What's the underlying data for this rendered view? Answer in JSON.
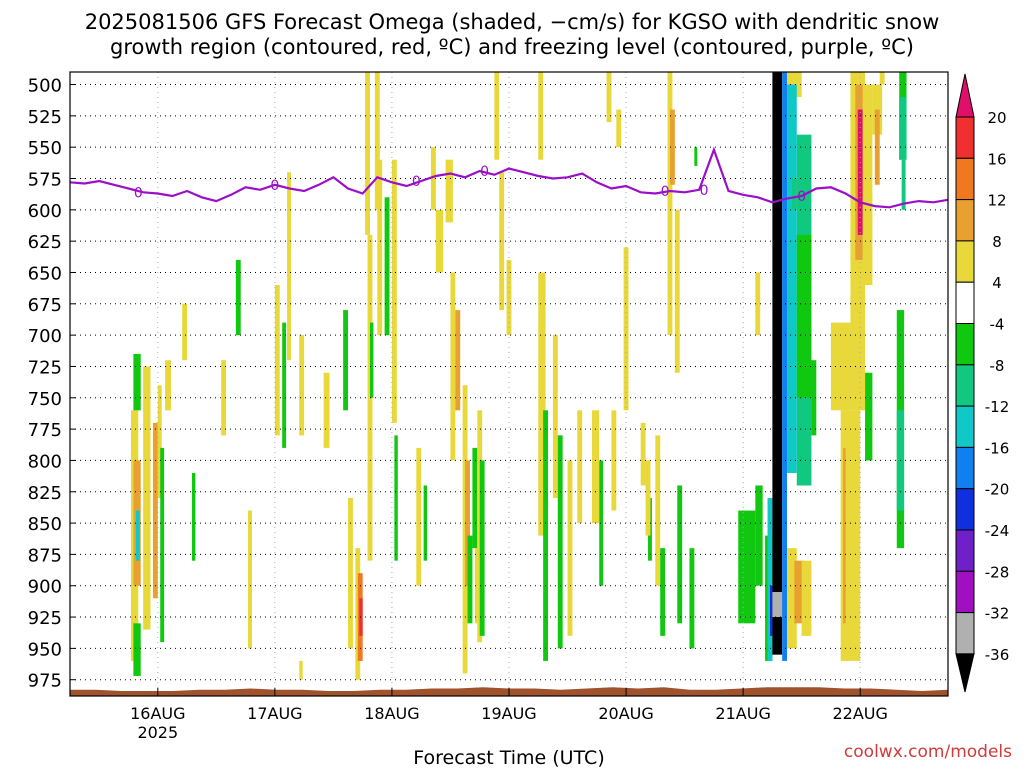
{
  "title": "2025081506 GFS Forecast Omega (shaded, −cm/s) for KGSO with dendritic snow\ngrowth region (contoured, red, ºC) and freezing level (contoured, purple, ºC)",
  "watermark": "coolwx.com/models",
  "chart_data": {
    "type": "heatmap",
    "title": "2025081506 GFS Forecast Omega (shaded, −cm/s) for KGSO with dendritic snow growth region (contoured, red, ºC) and freezing level (contoured, purple, ºC)",
    "xlabel": "Forecast Time (UTC)",
    "ylabel": "",
    "x_tick_labels": [
      "16AUG",
      "17AUG",
      "18AUG",
      "19AUG",
      "20AUG",
      "21AUG",
      "22AUG"
    ],
    "x_year_label": "2025",
    "x_range_hours": [
      0,
      180
    ],
    "y_ticks": [
      500,
      525,
      550,
      575,
      600,
      625,
      650,
      675,
      700,
      725,
      750,
      775,
      800,
      825,
      850,
      875,
      900,
      925,
      950,
      975
    ],
    "y_range": [
      490,
      988
    ],
    "grid": "dotted",
    "colorbar": {
      "ticks": [
        20,
        16,
        12,
        8,
        4,
        -4,
        -8,
        -12,
        -16,
        -20,
        -24,
        -28,
        -32,
        -36
      ],
      "bins": [
        {
          "lo": 20,
          "hi": 24,
          "color": "#e0106a"
        },
        {
          "lo": 16,
          "hi": 20,
          "color": "#f03030"
        },
        {
          "lo": 12,
          "hi": 16,
          "color": "#f07820"
        },
        {
          "lo": 8,
          "hi": 12,
          "color": "#e8a030"
        },
        {
          "lo": 4,
          "hi": 8,
          "color": "#e8d83a"
        },
        {
          "lo": -4,
          "hi": 4,
          "color": "#ffffff"
        },
        {
          "lo": -8,
          "hi": -4,
          "color": "#10c810"
        },
        {
          "lo": -12,
          "hi": -8,
          "color": "#10c880"
        },
        {
          "lo": -16,
          "hi": -12,
          "color": "#10c8c8"
        },
        {
          "lo": -20,
          "hi": -16,
          "color": "#1080f0"
        },
        {
          "lo": -24,
          "hi": -20,
          "color": "#1030e0"
        },
        {
          "lo": -28,
          "hi": -24,
          "color": "#7020c8"
        },
        {
          "lo": -32,
          "hi": -28,
          "color": "#a010c0"
        },
        {
          "lo": -36,
          "hi": -32,
          "color": "#b0b0b0"
        },
        {
          "lo": -40,
          "hi": -36,
          "color": "#000000"
        }
      ]
    },
    "freezing_level": {
      "label": "0",
      "color": "#9a10c8",
      "hours": [
        0,
        3,
        6,
        9,
        12,
        15,
        18,
        21,
        24,
        27,
        30,
        33,
        36,
        39,
        42,
        45,
        48,
        51,
        54,
        57,
        60,
        63,
        66,
        69,
        72,
        75,
        78,
        81,
        84,
        87,
        90,
        93,
        96,
        99,
        102,
        105,
        108,
        111,
        114,
        117,
        120,
        123,
        126,
        129,
        132,
        135,
        138,
        141,
        144,
        147,
        150,
        153,
        156,
        159,
        162,
        165,
        168,
        171,
        174,
        177,
        180
      ],
      "pressure": [
        578,
        579,
        577,
        580,
        583,
        586,
        587,
        589,
        585,
        590,
        593,
        588,
        582,
        584,
        580,
        583,
        585,
        580,
        574,
        583,
        587,
        574,
        578,
        581,
        577,
        573,
        571,
        574,
        569,
        572,
        567,
        570,
        573,
        575,
        574,
        571,
        578,
        583,
        581,
        586,
        587,
        585,
        586,
        584,
        552,
        585,
        588,
        590,
        594,
        591,
        589,
        583,
        582,
        587,
        594,
        597,
        598,
        595,
        593,
        594,
        592
      ]
    },
    "omega_cells": [
      {
        "t0": 12.5,
        "t1": 14.0,
        "p0": 760,
        "p1": 960,
        "value": 5
      },
      {
        "t0": 13.0,
        "t1": 14.5,
        "p0": 800,
        "p1": 900,
        "value": 10
      },
      {
        "t0": 13.5,
        "t1": 14.3,
        "p0": 840,
        "p1": 880,
        "value": -14
      },
      {
        "t0": 13.0,
        "t1": 14.5,
        "p0": 715,
        "p1": 760,
        "value": -6
      },
      {
        "t0": 13.0,
        "t1": 14.5,
        "p0": 930,
        "p1": 972,
        "value": -6
      },
      {
        "t0": 15.0,
        "t1": 16.5,
        "p0": 725,
        "p1": 935,
        "value": 5
      },
      {
        "t0": 17.0,
        "t1": 18.0,
        "p0": 770,
        "p1": 910,
        "value": 10
      },
      {
        "t0": 18.0,
        "t1": 18.8,
        "p0": 740,
        "p1": 830,
        "value": 6
      },
      {
        "t0": 18.5,
        "t1": 19.3,
        "p0": 790,
        "p1": 945,
        "value": -6
      },
      {
        "t0": 19.5,
        "t1": 20.7,
        "p0": 720,
        "p1": 760,
        "value": 5
      },
      {
        "t0": 23.0,
        "t1": 24.0,
        "p0": 675,
        "p1": 720,
        "value": 5
      },
      {
        "t0": 25.0,
        "t1": 25.7,
        "p0": 810,
        "p1": 880,
        "value": -6
      },
      {
        "t0": 31.0,
        "t1": 32.0,
        "p0": 720,
        "p1": 780,
        "value": 5
      },
      {
        "t0": 34.0,
        "t1": 35.0,
        "p0": 640,
        "p1": 700,
        "value": -6
      },
      {
        "t0": 36.5,
        "t1": 37.3,
        "p0": 840,
        "p1": 950,
        "value": 5
      },
      {
        "t0": 42.0,
        "t1": 43.0,
        "p0": 660,
        "p1": 780,
        "value": 5
      },
      {
        "t0": 43.5,
        "t1": 44.3,
        "p0": 690,
        "p1": 790,
        "value": -6
      },
      {
        "t0": 44.5,
        "t1": 45.3,
        "p0": 570,
        "p1": 720,
        "value": 5
      },
      {
        "t0": 47.0,
        "t1": 48.0,
        "p0": 700,
        "p1": 780,
        "value": 5
      },
      {
        "t0": 47.0,
        "t1": 47.7,
        "p0": 960,
        "p1": 975,
        "value": 5
      },
      {
        "t0": 52.0,
        "t1": 53.2,
        "p0": 730,
        "p1": 790,
        "value": 5
      },
      {
        "t0": 56.0,
        "t1": 57.0,
        "p0": 680,
        "p1": 760,
        "value": -6
      },
      {
        "t0": 57.0,
        "t1": 58.0,
        "p0": 830,
        "p1": 950,
        "value": 5
      },
      {
        "t0": 58.5,
        "t1": 59.5,
        "p0": 870,
        "p1": 975,
        "value": 5
      },
      {
        "t0": 59.0,
        "t1": 60.0,
        "p0": 890,
        "p1": 960,
        "value": 12
      },
      {
        "t0": 59.3,
        "t1": 60.0,
        "p0": 910,
        "p1": 940,
        "value": 18
      },
      {
        "t0": 60.5,
        "t1": 61.5,
        "p0": 490,
        "p1": 620,
        "value": 5
      },
      {
        "t0": 61.0,
        "t1": 62.0,
        "p0": 620,
        "p1": 880,
        "value": 5
      },
      {
        "t0": 61.5,
        "t1": 62.2,
        "p0": 690,
        "p1": 750,
        "value": -6
      },
      {
        "t0": 62.5,
        "t1": 63.5,
        "p0": 490,
        "p1": 600,
        "value": 5
      },
      {
        "t0": 63.0,
        "t1": 64.0,
        "p0": 560,
        "p1": 700,
        "value": 5
      },
      {
        "t0": 64.5,
        "t1": 65.5,
        "p0": 590,
        "p1": 700,
        "value": -6
      },
      {
        "t0": 66.0,
        "t1": 67.0,
        "p0": 560,
        "p1": 770,
        "value": 5
      },
      {
        "t0": 66.5,
        "t1": 67.2,
        "p0": 780,
        "p1": 880,
        "value": -6
      },
      {
        "t0": 71.0,
        "t1": 72.0,
        "p0": 790,
        "p1": 900,
        "value": 5
      },
      {
        "t0": 72.5,
        "t1": 73.2,
        "p0": 820,
        "p1": 880,
        "value": -6
      },
      {
        "t0": 74.0,
        "t1": 75.0,
        "p0": 550,
        "p1": 600,
        "value": 5
      },
      {
        "t0": 75.0,
        "t1": 76.5,
        "p0": 600,
        "p1": 650,
        "value": 5
      },
      {
        "t0": 77.0,
        "t1": 78.5,
        "p0": 560,
        "p1": 610,
        "value": 5
      },
      {
        "t0": 78.0,
        "t1": 79.0,
        "p0": 650,
        "p1": 800,
        "value": 5
      },
      {
        "t0": 79.0,
        "t1": 80.0,
        "p0": 680,
        "p1": 760,
        "value": 10
      },
      {
        "t0": 80.5,
        "t1": 81.5,
        "p0": 740,
        "p1": 970,
        "value": 5
      },
      {
        "t0": 81.0,
        "t1": 82.0,
        "p0": 800,
        "p1": 900,
        "value": 10
      },
      {
        "t0": 81.5,
        "t1": 82.5,
        "p0": 860,
        "p1": 930,
        "value": -6
      },
      {
        "t0": 82.5,
        "t1": 83.5,
        "p0": 790,
        "p1": 870,
        "value": -6
      },
      {
        "t0": 83.0,
        "t1": 84.0,
        "p0": 870,
        "p1": 930,
        "value": 5
      },
      {
        "t0": 83.5,
        "t1": 84.5,
        "p0": 760,
        "p1": 945,
        "value": 5
      },
      {
        "t0": 84.0,
        "t1": 85.0,
        "p0": 800,
        "p1": 940,
        "value": -6
      },
      {
        "t0": 87.0,
        "t1": 88.0,
        "p0": 490,
        "p1": 560,
        "value": 5
      },
      {
        "t0": 88.0,
        "t1": 89.0,
        "p0": 570,
        "p1": 680,
        "value": 5
      },
      {
        "t0": 89.5,
        "t1": 90.5,
        "p0": 640,
        "p1": 700,
        "value": 5
      },
      {
        "t0": 96.0,
        "t1": 97.0,
        "p0": 490,
        "p1": 560,
        "value": 5
      },
      {
        "t0": 96.0,
        "t1": 97.5,
        "p0": 650,
        "p1": 860,
        "value": 5
      },
      {
        "t0": 97.0,
        "t1": 98.0,
        "p0": 760,
        "p1": 960,
        "value": -6
      },
      {
        "t0": 99.0,
        "t1": 100.0,
        "p0": 700,
        "p1": 830,
        "value": 5
      },
      {
        "t0": 100.0,
        "t1": 101.0,
        "p0": 780,
        "p1": 950,
        "value": -6
      },
      {
        "t0": 102.0,
        "t1": 103.0,
        "p0": 800,
        "p1": 940,
        "value": 5
      },
      {
        "t0": 104.0,
        "t1": 105.0,
        "p0": 760,
        "p1": 850,
        "value": 5
      },
      {
        "t0": 107.0,
        "t1": 108.5,
        "p0": 760,
        "p1": 850,
        "value": 5
      },
      {
        "t0": 108.5,
        "t1": 109.3,
        "p0": 800,
        "p1": 900,
        "value": -6
      },
      {
        "t0": 110.0,
        "t1": 111.0,
        "p0": 490,
        "p1": 530,
        "value": 5
      },
      {
        "t0": 111.0,
        "t1": 112.0,
        "p0": 760,
        "p1": 840,
        "value": 5
      },
      {
        "t0": 112.0,
        "t1": 113.0,
        "p0": 520,
        "p1": 550,
        "value": 5
      },
      {
        "t0": 113.5,
        "t1": 114.5,
        "p0": 630,
        "p1": 760,
        "value": 5
      },
      {
        "t0": 117.0,
        "t1": 118.0,
        "p0": 770,
        "p1": 820,
        "value": 5
      },
      {
        "t0": 118.5,
        "t1": 119.3,
        "p0": 830,
        "p1": 880,
        "value": -6
      },
      {
        "t0": 118.0,
        "t1": 119.0,
        "p0": 800,
        "p1": 860,
        "value": 5
      },
      {
        "t0": 120.0,
        "t1": 121.0,
        "p0": 780,
        "p1": 900,
        "value": 5
      },
      {
        "t0": 121.0,
        "t1": 122.0,
        "p0": 870,
        "p1": 940,
        "value": -6
      },
      {
        "t0": 122.5,
        "t1": 123.5,
        "p0": 490,
        "p1": 700,
        "value": 5
      },
      {
        "t0": 123.0,
        "t1": 124.0,
        "p0": 520,
        "p1": 580,
        "value": 10
      },
      {
        "t0": 124.0,
        "t1": 125.0,
        "p0": 600,
        "p1": 730,
        "value": 5
      },
      {
        "t0": 124.5,
        "t1": 125.5,
        "p0": 820,
        "p1": 930,
        "value": -6
      },
      {
        "t0": 127.0,
        "t1": 128.0,
        "p0": 870,
        "p1": 950,
        "value": -6
      },
      {
        "t0": 128.0,
        "t1": 128.6,
        "p0": 550,
        "p1": 565,
        "value": -6
      },
      {
        "t0": 137.0,
        "t1": 140.5,
        "p0": 840,
        "p1": 930,
        "value": -6
      },
      {
        "t0": 140.5,
        "t1": 141.5,
        "p0": 650,
        "p1": 700,
        "value": 5
      },
      {
        "t0": 140.5,
        "t1": 142.0,
        "p0": 820,
        "p1": 900,
        "value": -6
      },
      {
        "t0": 142.5,
        "t1": 144.0,
        "p0": 860,
        "p1": 960,
        "value": -6
      },
      {
        "t0": 143.0,
        "t1": 144.0,
        "p0": 830,
        "p1": 960,
        "value": -14
      },
      {
        "t0": 143.5,
        "t1": 144.0,
        "p0": 900,
        "p1": 940,
        "value": -22
      },
      {
        "t0": 144.0,
        "t1": 146.0,
        "p0": 490,
        "p1": 955,
        "value": -38
      },
      {
        "t0": 144.0,
        "t1": 146.0,
        "p0": 905,
        "p1": 925,
        "value": -34
      },
      {
        "t0": 146.0,
        "t1": 147.0,
        "p0": 490,
        "p1": 960,
        "value": -18
      },
      {
        "t0": 147.0,
        "t1": 150.0,
        "p0": 490,
        "p1": 510,
        "value": 5
      },
      {
        "t0": 147.0,
        "t1": 149.0,
        "p0": 500,
        "p1": 810,
        "value": -14
      },
      {
        "t0": 149.0,
        "t1": 152.0,
        "p0": 540,
        "p1": 820,
        "value": -10
      },
      {
        "t0": 147.0,
        "t1": 149.0,
        "p0": 870,
        "p1": 950,
        "value": 5
      },
      {
        "t0": 148.5,
        "t1": 150.5,
        "p0": 880,
        "p1": 930,
        "value": 10
      },
      {
        "t0": 150.0,
        "t1": 152.0,
        "p0": 880,
        "p1": 940,
        "value": 5
      },
      {
        "t0": 149.0,
        "t1": 152.0,
        "p0": 620,
        "p1": 750,
        "value": -6
      },
      {
        "t0": 152.0,
        "t1": 153.0,
        "p0": 720,
        "p1": 780,
        "value": -6
      },
      {
        "t0": 160.0,
        "t1": 163.0,
        "p0": 490,
        "p1": 740,
        "value": 5
      },
      {
        "t0": 160.0,
        "t1": 163.0,
        "p0": 700,
        "p1": 760,
        "value": 5
      },
      {
        "t0": 161.0,
        "t1": 163.5,
        "p0": 500,
        "p1": 640,
        "value": 10
      },
      {
        "t0": 161.5,
        "t1": 163.5,
        "p0": 520,
        "p1": 620,
        "value": 22
      },
      {
        "t0": 162.5,
        "t1": 164.5,
        "p0": 500,
        "p1": 660,
        "value": 5
      },
      {
        "t0": 164.5,
        "t1": 166.5,
        "p0": 500,
        "p1": 540,
        "value": 5
      },
      {
        "t0": 165.0,
        "t1": 166.0,
        "p0": 520,
        "p1": 580,
        "value": 10
      },
      {
        "t0": 156.0,
        "t1": 160.0,
        "p0": 690,
        "p1": 760,
        "value": 5
      },
      {
        "t0": 158.0,
        "t1": 159.5,
        "p0": 760,
        "p1": 960,
        "value": 5
      },
      {
        "t0": 158.5,
        "t1": 159.3,
        "p0": 790,
        "p1": 930,
        "value": 10
      },
      {
        "t0": 163.0,
        "t1": 164.5,
        "p0": 730,
        "p1": 800,
        "value": -6
      },
      {
        "t0": 166.0,
        "t1": 167.0,
        "p0": 480,
        "p1": 500,
        "value": 5
      },
      {
        "t0": 170.0,
        "t1": 171.5,
        "p0": 490,
        "p1": 560,
        "value": -6
      },
      {
        "t0": 170.0,
        "t1": 171.5,
        "p0": 510,
        "p1": 560,
        "value": -10
      },
      {
        "t0": 170.5,
        "t1": 171.3,
        "p0": 560,
        "p1": 600,
        "value": -10
      },
      {
        "t0": 169.5,
        "t1": 171.0,
        "p0": 680,
        "p1": 870,
        "value": -6
      },
      {
        "t0": 169.5,
        "t1": 171.0,
        "p0": 760,
        "p1": 840,
        "value": -10
      },
      {
        "t0": 148.0,
        "t1": 149.0,
        "p0": 575,
        "p1": 600,
        "value": -10
      },
      {
        "t0": 159.0,
        "t1": 162.0,
        "p0": 760,
        "p1": 960,
        "value": 5
      }
    ],
    "terrain_surface_pressure": [
      983,
      983,
      984,
      984,
      984,
      983,
      983,
      982,
      983,
      983,
      984,
      984,
      983,
      983,
      982,
      982,
      981,
      982,
      982,
      983,
      982,
      981,
      982,
      981,
      983,
      983,
      982,
      981,
      981,
      981,
      982,
      982,
      983,
      984,
      983
    ]
  }
}
